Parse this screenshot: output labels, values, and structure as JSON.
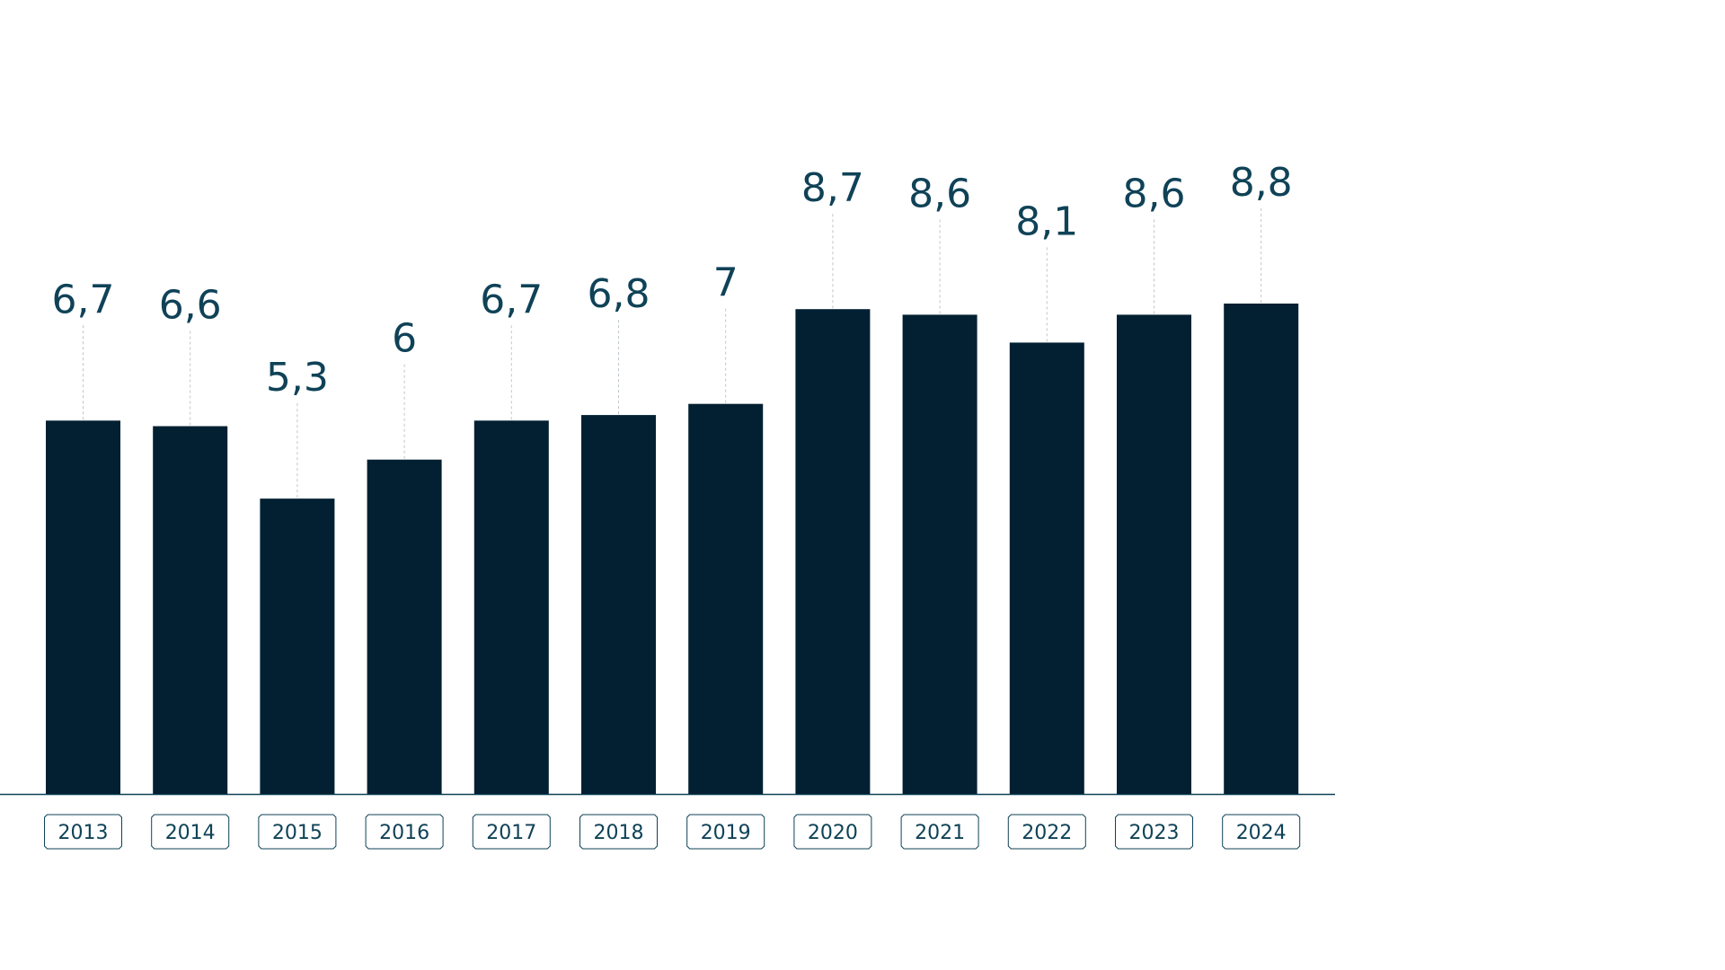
{
  "colors": {
    "bar": "#022032",
    "label": "#0f4257",
    "leader": "#bcc6cc",
    "axis": "#0f4257",
    "pill_border": "#0f4257",
    "background": "#ffffff"
  },
  "chart_data": {
    "type": "bar",
    "categories": [
      "2013",
      "2014",
      "2015",
      "2016",
      "2017",
      "2018",
      "2019",
      "2020",
      "2021",
      "2022",
      "2023",
      "2024"
    ],
    "values": [
      6.7,
      6.6,
      5.3,
      6,
      6.7,
      6.8,
      7,
      8.7,
      8.6,
      8.1,
      8.6,
      8.8
    ],
    "value_labels": [
      "6,7",
      "6,6",
      "5,3",
      "6",
      "6,7",
      "6,8",
      "7",
      "8,7",
      "8,6",
      "8,1",
      "8,6",
      "8,8"
    ],
    "title": "",
    "xlabel": "",
    "ylabel": "",
    "ylim": [
      0,
      8.8
    ],
    "grid": false,
    "legend": "none",
    "decimal_separator": ","
  }
}
